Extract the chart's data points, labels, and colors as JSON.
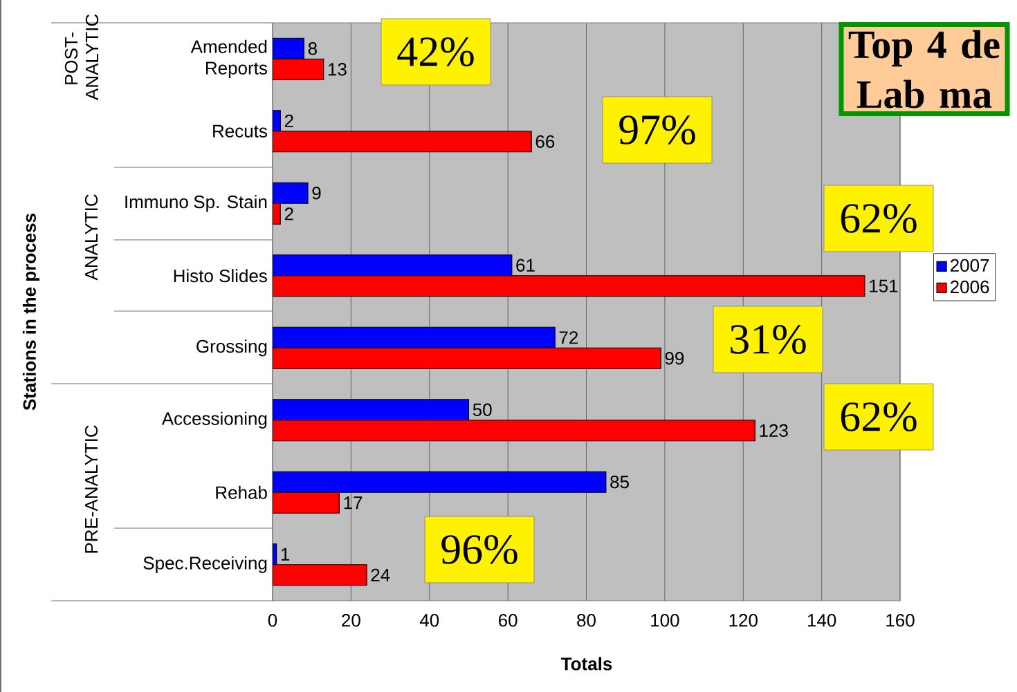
{
  "chart_data": {
    "type": "bar",
    "orientation": "horizontal",
    "xlabel": "Totals",
    "ylabel": "Stations in the process",
    "categories": [
      "Amended Reports",
      "Recuts",
      "Immuno Sp. Stain",
      "Histo Slides",
      "Grossing",
      "Accessioning",
      "Rehab",
      "Spec.Receiving"
    ],
    "series": [
      {
        "name": "2007",
        "color": "#0000ff",
        "values": [
          8,
          2,
          9,
          61,
          72,
          50,
          85,
          1
        ]
      },
      {
        "name": "2006",
        "color": "#ff0000",
        "values": [
          13,
          66,
          2,
          151,
          99,
          123,
          17,
          24
        ]
      }
    ],
    "xlim": [
      0,
      160
    ],
    "xticks": [
      0,
      20,
      40,
      60,
      80,
      100,
      120,
      140,
      160
    ],
    "grid": "x",
    "legend": "right",
    "data_labels": true,
    "annotations": [
      "Top 4 de Lab ma",
      "42%",
      "97%",
      "62%",
      "31%",
      "62%",
      "96%",
      "POST-ANALYTIC",
      "ANALYTIC",
      "PRE-ANALYTIC"
    ]
  }
}
